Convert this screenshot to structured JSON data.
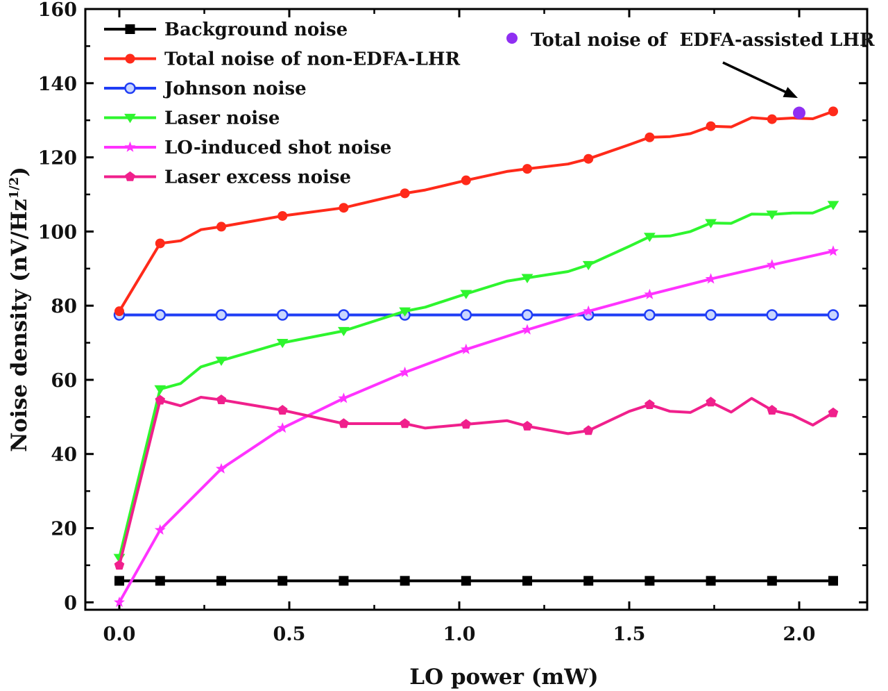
{
  "chart_data": {
    "type": "line",
    "xlabel": "LO power (mW)",
    "ylabel": "Noise density (nV/Hz",
    "ylabel_sup": "1/2",
    "ylabel_close": ")",
    "xlim": [
      -0.1,
      2.2
    ],
    "ylim": [
      -2,
      160
    ],
    "xticks": [
      0.0,
      0.5,
      1.0,
      1.5,
      2.0
    ],
    "xtick_labels": [
      "0.0",
      "0.5",
      "1.0",
      "1.5",
      "2.0"
    ],
    "yticks": [
      0,
      20,
      40,
      60,
      80,
      100,
      120,
      140,
      160
    ],
    "ytick_labels": [
      "0",
      "20",
      "40",
      "60",
      "80",
      "100",
      "120",
      "140",
      "160"
    ],
    "grid": false,
    "legend_position": "top-left",
    "series": [
      {
        "name": "Background noise",
        "color": "#000000",
        "marker": "square",
        "x": [
          0.0,
          0.12,
          0.3,
          0.48,
          0.66,
          0.84,
          1.02,
          1.2,
          1.38,
          1.56,
          1.74,
          1.92,
          2.1
        ],
        "y": [
          5.8,
          5.8,
          5.8,
          5.8,
          5.8,
          5.8,
          5.8,
          5.8,
          5.8,
          5.8,
          5.8,
          5.8,
          5.8
        ],
        "marker_x": [
          0.0,
          0.12,
          0.3,
          0.48,
          0.66,
          0.84,
          1.02,
          1.2,
          1.38,
          1.56,
          1.74,
          1.92,
          2.1
        ]
      },
      {
        "name": "Total noise of non-EDFA-LHR",
        "color": "#ff2a1a",
        "marker": "circle",
        "x": [
          0.0,
          0.12,
          0.18,
          0.24,
          0.3,
          0.48,
          0.66,
          0.84,
          0.9,
          1.02,
          1.14,
          1.2,
          1.32,
          1.38,
          1.5,
          1.56,
          1.62,
          1.68,
          1.74,
          1.8,
          1.86,
          1.92,
          1.98,
          2.04,
          2.1
        ],
        "y": [
          78.5,
          96.8,
          97.5,
          100.5,
          101.3,
          104.2,
          106.4,
          110.3,
          111.2,
          113.8,
          116.2,
          116.9,
          118.2,
          119.6,
          123.4,
          125.4,
          125.6,
          126.4,
          128.4,
          128.2,
          130.7,
          130.3,
          130.6,
          130.4,
          132.4
        ],
        "marker_x": [
          0.0,
          0.12,
          0.3,
          0.48,
          0.66,
          0.84,
          1.02,
          1.2,
          1.38,
          1.56,
          1.74,
          1.92,
          2.1
        ]
      },
      {
        "name": "Johnson noise",
        "color": "#1f3df5",
        "marker": "open-circle",
        "x": [
          0.0,
          0.12,
          0.3,
          0.48,
          0.66,
          0.84,
          1.02,
          1.2,
          1.38,
          1.56,
          1.74,
          1.92,
          2.1
        ],
        "y": [
          77.5,
          77.5,
          77.5,
          77.5,
          77.5,
          77.5,
          77.5,
          77.5,
          77.5,
          77.5,
          77.5,
          77.5,
          77.5
        ],
        "marker_x": [
          0.0,
          0.12,
          0.3,
          0.48,
          0.66,
          0.84,
          1.02,
          1.2,
          1.38,
          1.56,
          1.74,
          1.92,
          2.1
        ]
      },
      {
        "name": "Laser noise",
        "color": "#2ef52e",
        "marker": "triangle-down",
        "x": [
          0.0,
          0.12,
          0.18,
          0.24,
          0.3,
          0.48,
          0.66,
          0.84,
          0.9,
          1.02,
          1.14,
          1.2,
          1.32,
          1.38,
          1.5,
          1.56,
          1.62,
          1.68,
          1.74,
          1.8,
          1.86,
          1.92,
          1.98,
          2.04,
          2.1
        ],
        "y": [
          12.0,
          57.5,
          59.0,
          63.5,
          65.2,
          70.0,
          73.2,
          78.5,
          79.6,
          83.2,
          86.6,
          87.5,
          89.2,
          91.0,
          96.0,
          98.6,
          98.8,
          100.0,
          102.3,
          102.2,
          104.7,
          104.6,
          105.0,
          105.0,
          107.2
        ],
        "marker_x": [
          0.0,
          0.12,
          0.3,
          0.48,
          0.66,
          0.84,
          1.02,
          1.2,
          1.38,
          1.56,
          1.74,
          1.92,
          2.1
        ]
      },
      {
        "name": "LO-induced shot noise",
        "color": "#ff33ff",
        "marker": "star",
        "x": [
          0.0,
          0.12,
          0.3,
          0.48,
          0.66,
          0.84,
          1.02,
          1.2,
          1.38,
          1.56,
          1.74,
          1.92,
          2.1
        ],
        "y": [
          0.0,
          19.5,
          36.0,
          47.0,
          55.0,
          62.0,
          68.2,
          73.5,
          78.5,
          83.0,
          87.2,
          91.0,
          94.7
        ],
        "marker_x": [
          0.0,
          0.12,
          0.3,
          0.48,
          0.66,
          0.84,
          1.02,
          1.2,
          1.38,
          1.56,
          1.74,
          1.92,
          2.1
        ]
      },
      {
        "name": "Laser excess noise",
        "color": "#f0208c",
        "marker": "pentagon",
        "x": [
          0.0,
          0.12,
          0.18,
          0.24,
          0.3,
          0.48,
          0.66,
          0.84,
          0.9,
          1.02,
          1.14,
          1.2,
          1.32,
          1.38,
          1.5,
          1.56,
          1.62,
          1.68,
          1.74,
          1.8,
          1.86,
          1.92,
          1.98,
          2.04,
          2.1
        ],
        "y": [
          10.0,
          54.5,
          53.0,
          55.3,
          54.6,
          51.8,
          48.2,
          48.2,
          47.0,
          48.0,
          49.0,
          47.5,
          45.5,
          46.3,
          51.5,
          53.3,
          51.5,
          51.2,
          54.0,
          51.3,
          55.0,
          51.8,
          50.5,
          47.8,
          51.1
        ],
        "marker_x": [
          0.0,
          0.12,
          0.3,
          0.48,
          0.66,
          0.84,
          1.02,
          1.2,
          1.38,
          1.56,
          1.74,
          1.92,
          2.1
        ]
      }
    ],
    "extra_point": {
      "name": "Total noise of  EDFA-assisted LHR",
      "color": "#8f2ff2",
      "x": 2.0,
      "y": 132.0
    }
  }
}
